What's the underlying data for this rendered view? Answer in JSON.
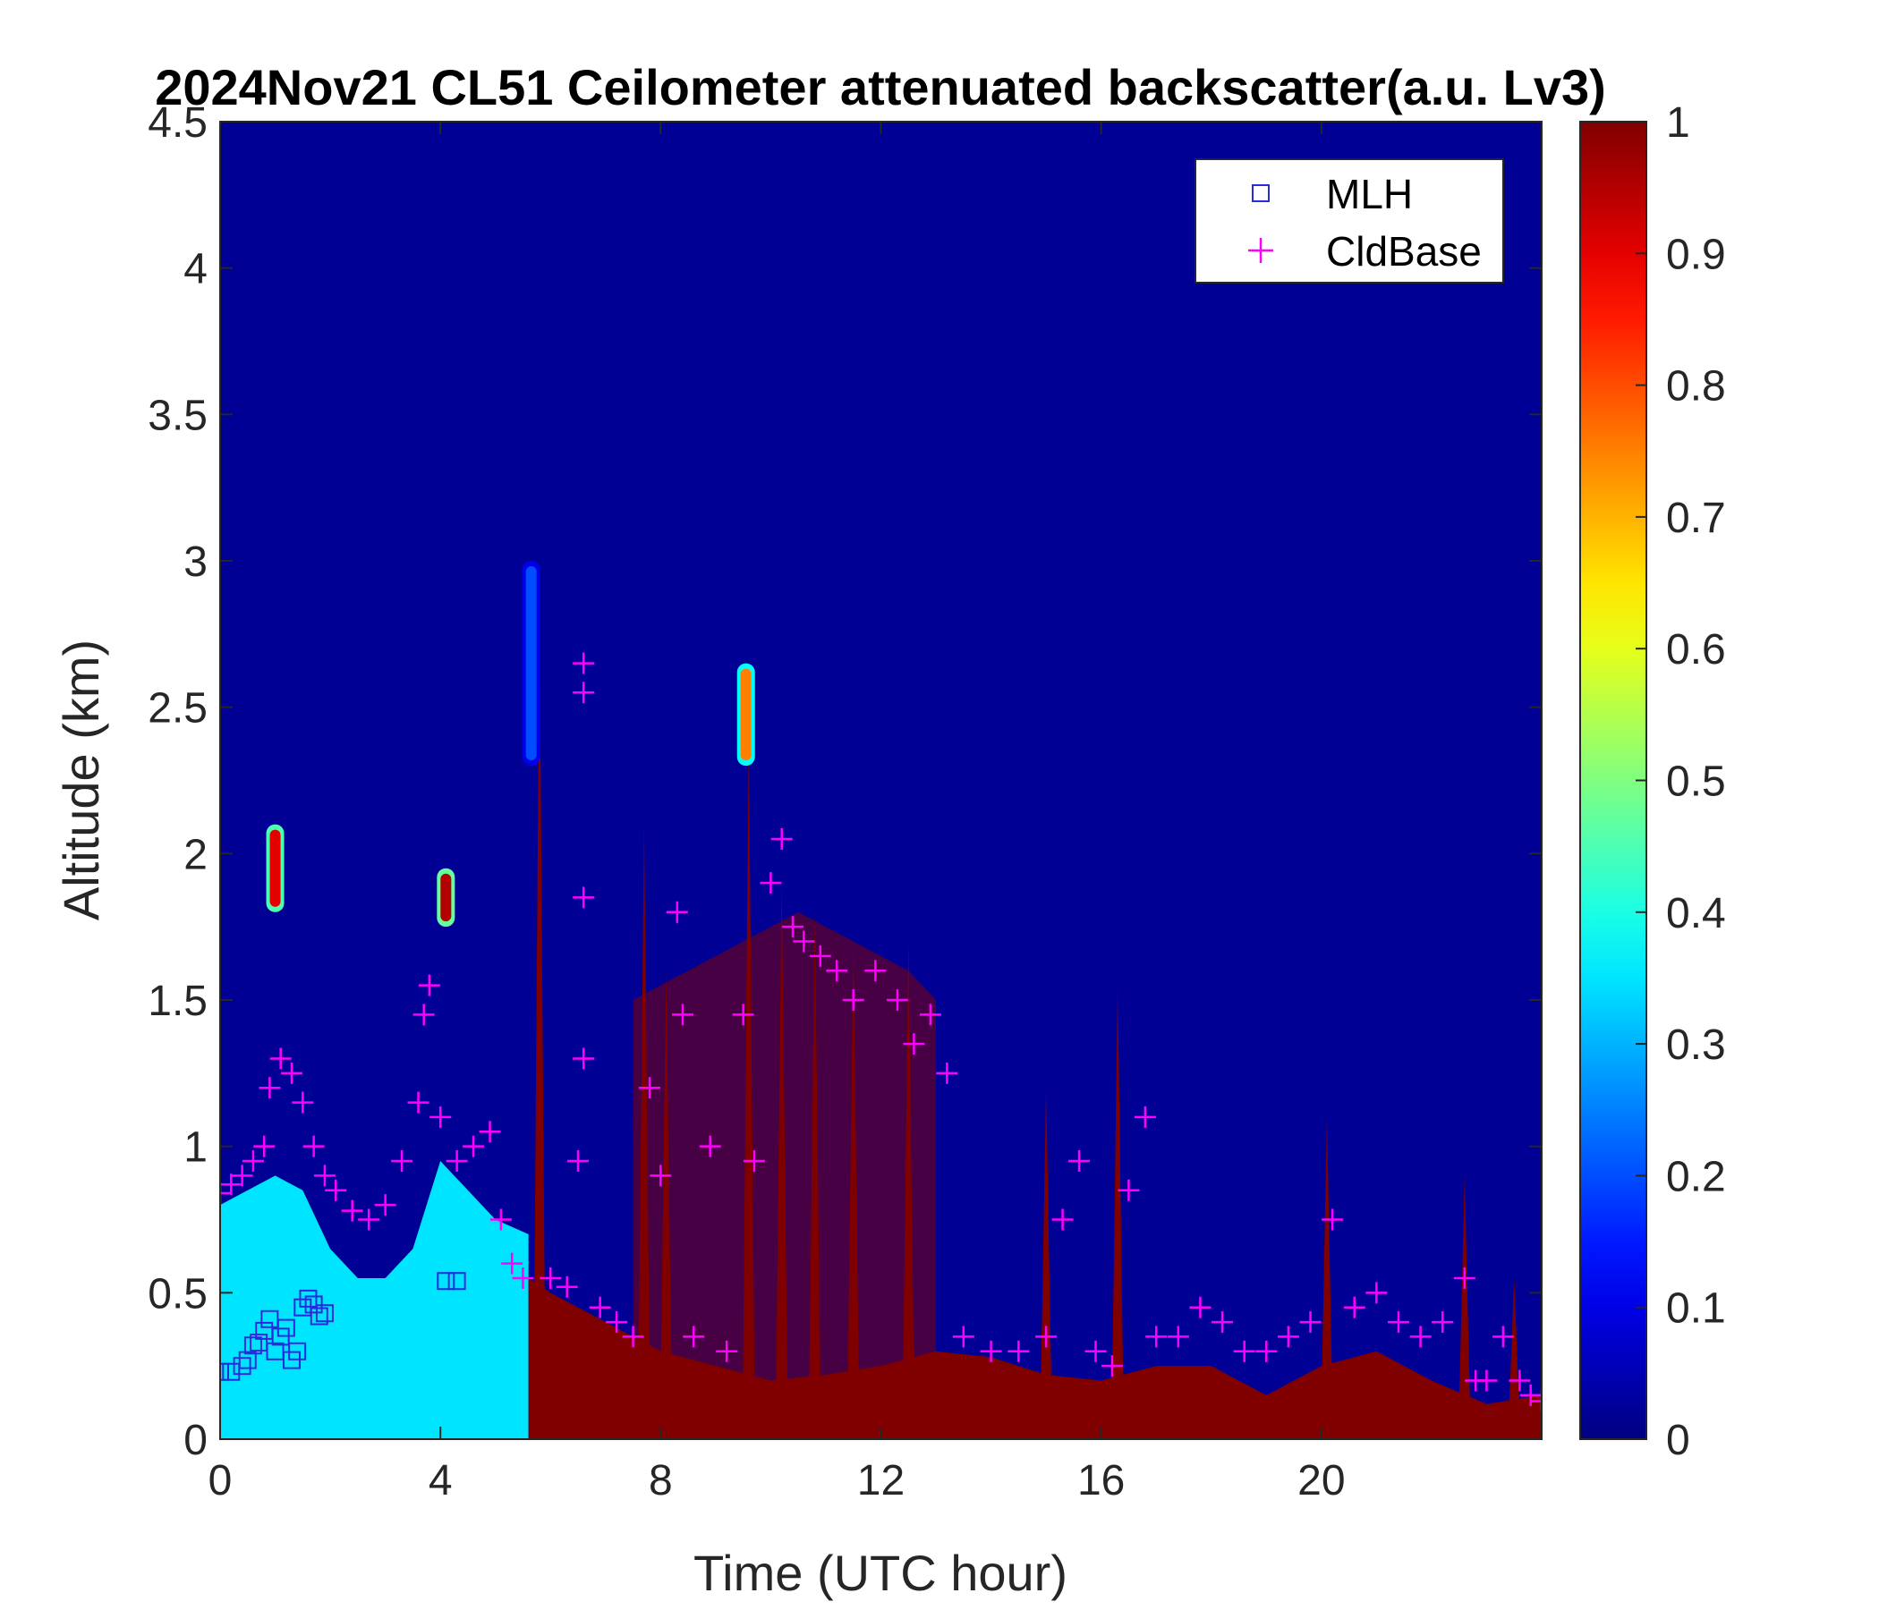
{
  "chart_data": {
    "type": "heatmap",
    "title": "2024Nov21 CL51 Ceilometer attenuated backscatter(a.u. Lv3)",
    "xlabel": "Time (UTC hour)",
    "ylabel": "Altitude (km)",
    "xlim": [
      0,
      24
    ],
    "ylim": [
      0,
      4.5
    ],
    "xticks": [
      0,
      4,
      8,
      12,
      16,
      20
    ],
    "xtick_labels": [
      "0",
      "4",
      "8",
      "12",
      "16",
      "20"
    ],
    "yticks": [
      0,
      0.5,
      1,
      1.5,
      2,
      2.5,
      3,
      3.5,
      4,
      4.5
    ],
    "ytick_labels": [
      "0",
      "0.5",
      "1",
      "1.5",
      "2",
      "2.5",
      "3",
      "3.5",
      "4",
      "4.5"
    ],
    "colorbar": {
      "colormap": "jet",
      "range": [
        0,
        1
      ],
      "ticks": [
        0,
        0.1,
        0.2,
        0.3,
        0.4,
        0.5,
        0.6,
        0.7,
        0.8,
        0.9,
        1
      ],
      "tick_labels": [
        "0",
        "0.1",
        "0.2",
        "0.3",
        "0.4",
        "0.5",
        "0.6",
        "0.7",
        "0.8",
        "0.9",
        "1"
      ]
    },
    "background_value": 0.02,
    "aerosol_layer": {
      "x": [
        0,
        0.5,
        1,
        1.5,
        2,
        2.5,
        3,
        3.5,
        4,
        4.5,
        5,
        5.6
      ],
      "top": [
        0.8,
        0.85,
        0.9,
        0.85,
        0.65,
        0.55,
        0.55,
        0.65,
        0.95,
        0.85,
        0.75,
        0.7
      ],
      "value": 0.35
    },
    "dense_layer": {
      "x": [
        5.6,
        6,
        7,
        8,
        9,
        10,
        11,
        12,
        13,
        14,
        15,
        16,
        17,
        18,
        19,
        20,
        21,
        22,
        23,
        24
      ],
      "top": [
        0.55,
        0.5,
        0.4,
        0.3,
        0.25,
        0.2,
        0.22,
        0.25,
        0.3,
        0.28,
        0.22,
        0.2,
        0.25,
        0.25,
        0.15,
        0.25,
        0.3,
        0.2,
        0.12,
        0.15
      ],
      "value": 1.0
    },
    "clouds": [
      {
        "t": 1.0,
        "z0": 1.8,
        "z1": 2.1,
        "v": 0.9
      },
      {
        "t": 4.1,
        "z0": 1.75,
        "z1": 1.95,
        "v": 0.95
      },
      {
        "t": 9.55,
        "z0": 2.3,
        "z1": 2.65,
        "v": 0.75
      },
      {
        "t": 5.65,
        "z0": 2.3,
        "z1": 3.0,
        "v": 0.2
      }
    ],
    "spikes": [
      {
        "t": 5.8,
        "z": 2.8
      },
      {
        "t": 7.7,
        "z": 2.1
      },
      {
        "t": 8.1,
        "z": 1.6
      },
      {
        "t": 9.6,
        "z": 2.4
      },
      {
        "t": 10.2,
        "z": 1.9
      },
      {
        "t": 10.8,
        "z": 1.8
      },
      {
        "t": 11.5,
        "z": 1.7
      },
      {
        "t": 12.5,
        "z": 1.7
      },
      {
        "t": 15.0,
        "z": 1.2
      },
      {
        "t": 16.3,
        "z": 1.55
      },
      {
        "t": 20.1,
        "z": 1.1
      },
      {
        "t": 22.6,
        "z": 0.9
      },
      {
        "t": 23.5,
        "z": 0.55
      }
    ],
    "cloud_band": {
      "x": [
        7.5,
        8.5,
        9.5,
        10.5,
        11.5,
        12.5,
        13.0
      ],
      "top": [
        1.5,
        1.6,
        1.7,
        1.8,
        1.7,
        1.6,
        1.5
      ],
      "value": 1.0
    },
    "mlh": {
      "name": "MLH",
      "color": "#2b2bdc",
      "points": [
        [
          0.0,
          0.23
        ],
        [
          0.2,
          0.23
        ],
        [
          0.4,
          0.25
        ],
        [
          0.5,
          0.27
        ],
        [
          0.6,
          0.32
        ],
        [
          0.7,
          0.33
        ],
        [
          0.8,
          0.37
        ],
        [
          0.9,
          0.41
        ],
        [
          1.0,
          0.3
        ],
        [
          1.1,
          0.35
        ],
        [
          1.2,
          0.38
        ],
        [
          1.3,
          0.27
        ],
        [
          1.4,
          0.3
        ],
        [
          1.5,
          0.45
        ],
        [
          1.6,
          0.48
        ],
        [
          1.7,
          0.46
        ],
        [
          1.8,
          0.42
        ],
        [
          1.9,
          0.43
        ],
        [
          4.1,
          0.54
        ],
        [
          4.3,
          0.54
        ]
      ]
    },
    "cldbase": {
      "name": "CldBase",
      "color": "#ff00ff",
      "points": [
        [
          0.0,
          0.84
        ],
        [
          0.2,
          0.87
        ],
        [
          0.4,
          0.9
        ],
        [
          0.6,
          0.95
        ],
        [
          0.8,
          1.0
        ],
        [
          0.9,
          1.2
        ],
        [
          1.1,
          1.3
        ],
        [
          1.3,
          1.25
        ],
        [
          1.5,
          1.15
        ],
        [
          1.7,
          1.0
        ],
        [
          1.9,
          0.9
        ],
        [
          2.1,
          0.85
        ],
        [
          2.4,
          0.78
        ],
        [
          2.7,
          0.75
        ],
        [
          3.0,
          0.8
        ],
        [
          3.3,
          0.95
        ],
        [
          3.6,
          1.15
        ],
        [
          3.7,
          1.45
        ],
        [
          3.8,
          1.55
        ],
        [
          4.0,
          1.1
        ],
        [
          4.3,
          0.95
        ],
        [
          4.6,
          1.0
        ],
        [
          4.9,
          1.05
        ],
        [
          5.1,
          0.75
        ],
        [
          5.3,
          0.6
        ],
        [
          5.5,
          0.55
        ],
        [
          6.0,
          0.55
        ],
        [
          6.3,
          0.52
        ],
        [
          6.5,
          0.95
        ],
        [
          6.6,
          1.3
        ],
        [
          6.6,
          1.85
        ],
        [
          6.6,
          2.55
        ],
        [
          6.6,
          2.65
        ],
        [
          6.9,
          0.45
        ],
        [
          7.2,
          0.4
        ],
        [
          7.5,
          0.35
        ],
        [
          7.8,
          1.2
        ],
        [
          8.0,
          0.9
        ],
        [
          8.3,
          1.8
        ],
        [
          8.4,
          1.45
        ],
        [
          8.6,
          0.35
        ],
        [
          8.9,
          1.0
        ],
        [
          9.2,
          0.3
        ],
        [
          9.5,
          1.45
        ],
        [
          9.7,
          0.95
        ],
        [
          10.0,
          1.9
        ],
        [
          10.2,
          2.05
        ],
        [
          10.4,
          1.75
        ],
        [
          10.6,
          1.7
        ],
        [
          10.9,
          1.65
        ],
        [
          11.2,
          1.6
        ],
        [
          11.5,
          1.5
        ],
        [
          11.9,
          1.6
        ],
        [
          12.3,
          1.5
        ],
        [
          12.6,
          1.35
        ],
        [
          12.9,
          1.45
        ],
        [
          13.2,
          1.25
        ],
        [
          13.5,
          0.35
        ],
        [
          14.0,
          0.3
        ],
        [
          14.5,
          0.3
        ],
        [
          15.0,
          0.35
        ],
        [
          15.3,
          0.75
        ],
        [
          15.6,
          0.95
        ],
        [
          15.9,
          0.3
        ],
        [
          16.2,
          0.25
        ],
        [
          16.5,
          0.85
        ],
        [
          16.8,
          1.1
        ],
        [
          17.0,
          0.35
        ],
        [
          17.4,
          0.35
        ],
        [
          17.8,
          0.45
        ],
        [
          18.2,
          0.4
        ],
        [
          18.6,
          0.3
        ],
        [
          19.0,
          0.3
        ],
        [
          19.4,
          0.35
        ],
        [
          19.8,
          0.4
        ],
        [
          20.2,
          0.75
        ],
        [
          20.6,
          0.45
        ],
        [
          21.0,
          0.5
        ],
        [
          21.4,
          0.4
        ],
        [
          21.8,
          0.35
        ],
        [
          22.2,
          0.4
        ],
        [
          22.6,
          0.55
        ],
        [
          22.8,
          0.2
        ],
        [
          23.0,
          0.2
        ],
        [
          23.3,
          0.35
        ],
        [
          23.6,
          0.2
        ],
        [
          23.8,
          0.15
        ],
        [
          24.0,
          0.13
        ]
      ]
    },
    "legend": {
      "position": "top-right",
      "entries": [
        {
          "label": "MLH",
          "marker": "square",
          "color": "#2b2bdc"
        },
        {
          "label": "CldBase",
          "marker": "plus",
          "color": "#ff00ff"
        }
      ]
    }
  }
}
